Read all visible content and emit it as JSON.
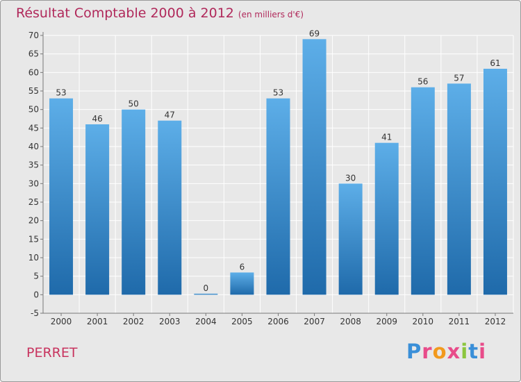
{
  "header": {
    "title": "Résultat Comptable 2000 à 2012",
    "unit": "(en milliers d'€)"
  },
  "footer": {
    "place": "PERRET",
    "logo_text": "Proxiti"
  },
  "colors": {
    "title": "#b0285a",
    "bar_top": "#5daee8",
    "bar_bottom": "#1f6aaa",
    "background": "#e8e8e8",
    "grid": "#ffffff",
    "logo_letters": [
      "#3a8fd8",
      "#e84c8a",
      "#f29a1e",
      "#e84c8a",
      "#8cc63e",
      "#3a8fd8",
      "#e84c8a"
    ]
  },
  "chart_data": {
    "type": "bar",
    "title": "Résultat Comptable 2000 à 2012",
    "subtitle": "(en milliers d'€)",
    "xlabel": "",
    "ylabel": "",
    "categories": [
      "2000",
      "2001",
      "2002",
      "2003",
      "2004",
      "2005",
      "2006",
      "2007",
      "2008",
      "2009",
      "2010",
      "2011",
      "2012"
    ],
    "values": [
      53,
      46,
      50,
      47,
      0,
      6,
      53,
      69,
      30,
      41,
      56,
      57,
      61
    ],
    "ylim": [
      -5,
      70
    ],
    "yticks": [
      -5,
      0,
      5,
      10,
      15,
      20,
      25,
      30,
      35,
      40,
      45,
      50,
      55,
      60,
      65,
      70
    ],
    "grid": true
  }
}
